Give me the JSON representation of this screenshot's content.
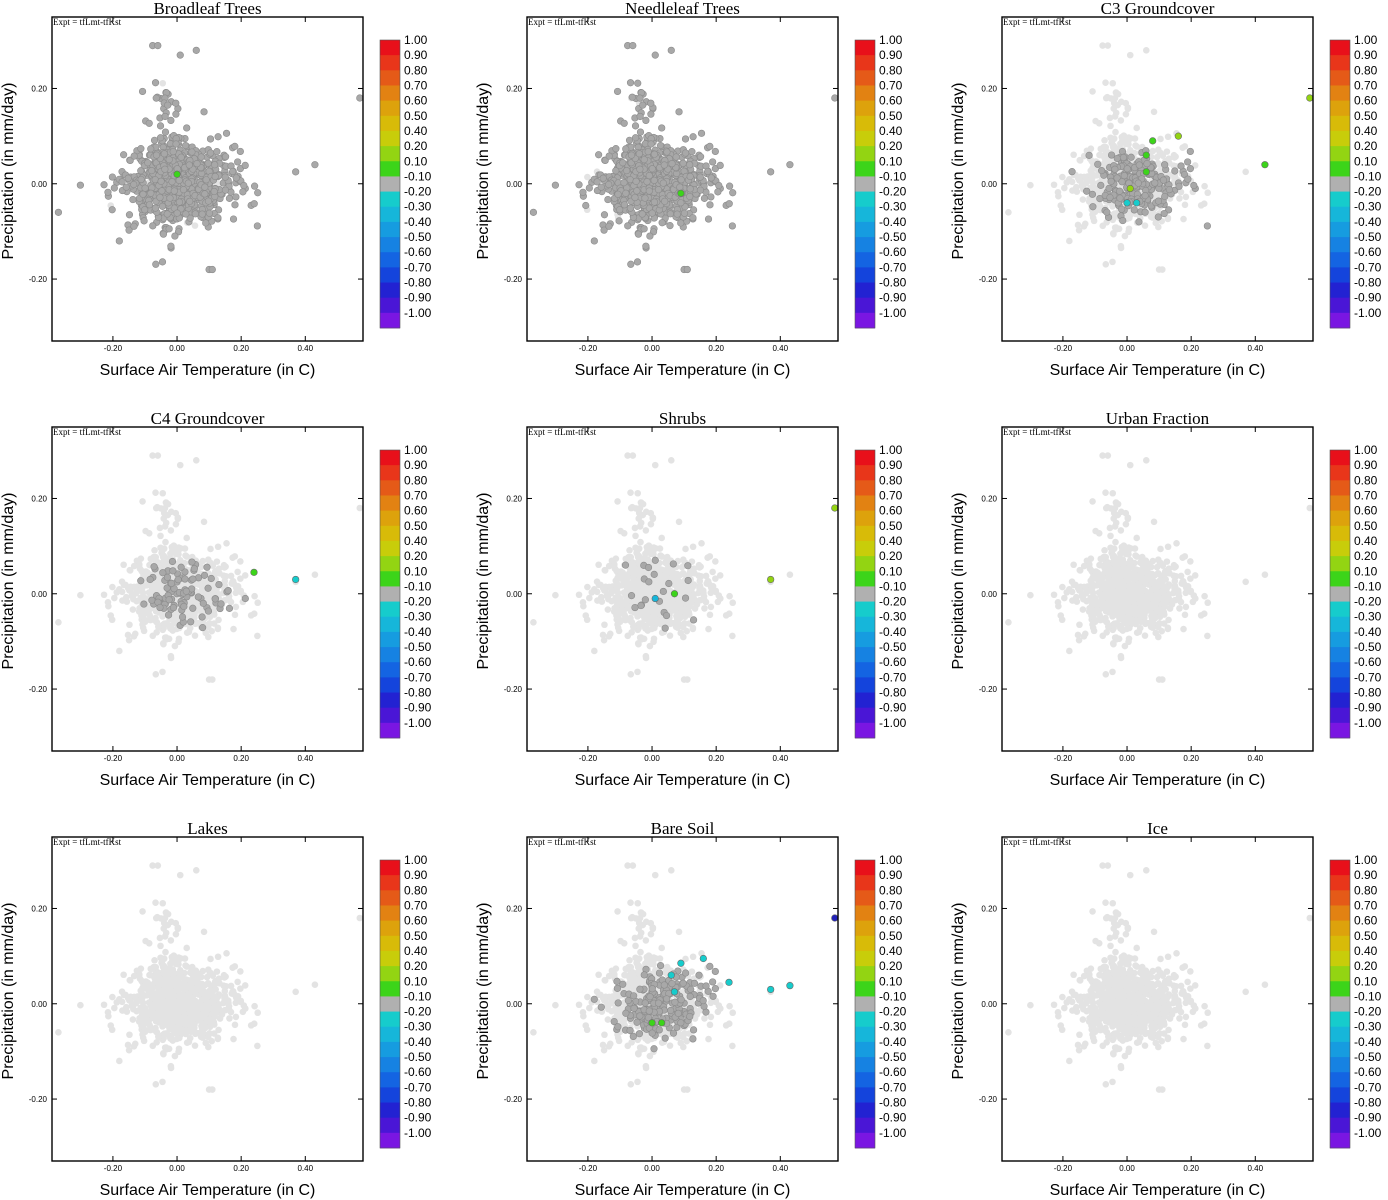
{
  "chart_data": {
    "type": "scatter",
    "experiment_label": "Expt = tfLmt-tfKst",
    "xlabel": "Surface Air Temperature (in C)",
    "ylabel": "Precipitation (in mm/day)",
    "xlim": [
      -0.39,
      0.58
    ],
    "ylim": [
      -0.33,
      0.35
    ],
    "xticks": [
      -0.2,
      0.0,
      0.2,
      0.4
    ],
    "xtick_labels": [
      "-0.20",
      "0.00",
      "0.20",
      "0.40"
    ],
    "yticks": [
      -0.2,
      0.0,
      0.2
    ],
    "ytick_labels": [
      "-0.20",
      "0.00",
      "0.20"
    ],
    "colorbar": {
      "labels": [
        "1.00",
        "0.90",
        "0.80",
        "0.70",
        "0.60",
        "0.50",
        "0.40",
        "0.20",
        "0.10",
        "-0.10",
        "-0.20",
        "-0.30",
        "-0.40",
        "-0.50",
        "-0.60",
        "-0.70",
        "-0.80",
        "-0.90",
        "-1.00"
      ],
      "colors": [
        "#e8101a",
        "#e8361a",
        "#e55a18",
        "#e28212",
        "#dda20c",
        "#d8bb08",
        "#c8cd0a",
        "#93d412",
        "#3cd41a",
        "#b0b0b0",
        "#16cccc",
        "#16b6da",
        "#169ce0",
        "#1682e2",
        "#1464e2",
        "#1444dc",
        "#2222d2",
        "#4a16d6",
        "#7a16e2"
      ]
    },
    "colors": {
      "background_point": "#e3e3e3",
      "neutral_point": "#a8a8a8",
      "positive": "#3cd41a",
      "positive_mid": "#93d412",
      "negative": "#16cccc",
      "negative_mid": "#16b6da",
      "strong_negative": "#2222b8"
    },
    "panels": [
      {
        "title": "Broadleaf Trees",
        "density": "heavy",
        "highlights": [
          {
            "x": 0.0,
            "y": 0.02,
            "color": "positive"
          }
        ]
      },
      {
        "title": "Needleleaf Trees",
        "density": "heavy",
        "highlights": [
          {
            "x": 0.09,
            "y": -0.02,
            "color": "positive"
          }
        ]
      },
      {
        "title": "C3 Groundcover",
        "density": "medium",
        "highlights": [
          {
            "x": 0.08,
            "y": 0.09,
            "color": "positive"
          },
          {
            "x": 0.16,
            "y": 0.1,
            "color": "positive_mid"
          },
          {
            "x": 0.06,
            "y": 0.06,
            "color": "positive"
          },
          {
            "x": 0.06,
            "y": 0.025,
            "color": "positive"
          },
          {
            "x": 0.43,
            "y": 0.04,
            "color": "positive"
          },
          {
            "x": 0.01,
            "y": -0.01,
            "color": "positive_mid"
          },
          {
            "x": 0.0,
            "y": -0.04,
            "color": "negative"
          },
          {
            "x": 0.03,
            "y": -0.04,
            "color": "negative"
          },
          {
            "x": 0.57,
            "y": 0.18,
            "color": "positive_mid"
          }
        ]
      },
      {
        "title": "C4 Groundcover",
        "density": "light",
        "highlights": [
          {
            "x": 0.24,
            "y": 0.045,
            "color": "positive"
          },
          {
            "x": 0.37,
            "y": 0.03,
            "color": "negative"
          }
        ]
      },
      {
        "title": "Shrubs",
        "density": "sparse",
        "highlights": [
          {
            "x": 0.01,
            "y": -0.01,
            "color": "negative_mid"
          },
          {
            "x": 0.07,
            "y": 0.0,
            "color": "positive"
          },
          {
            "x": 0.37,
            "y": 0.03,
            "color": "positive_mid"
          },
          {
            "x": 0.57,
            "y": 0.18,
            "color": "positive_mid"
          }
        ]
      },
      {
        "title": "Urban Fraction",
        "density": "none",
        "highlights": []
      },
      {
        "title": "Lakes",
        "density": "none",
        "highlights": []
      },
      {
        "title": "Bare Soil",
        "density": "medium",
        "highlights": [
          {
            "x": 0.09,
            "y": 0.085,
            "color": "negative"
          },
          {
            "x": 0.16,
            "y": 0.095,
            "color": "negative"
          },
          {
            "x": 0.06,
            "y": 0.06,
            "color": "negative"
          },
          {
            "x": 0.24,
            "y": 0.045,
            "color": "negative"
          },
          {
            "x": 0.37,
            "y": 0.03,
            "color": "negative"
          },
          {
            "x": 0.43,
            "y": 0.038,
            "color": "negative"
          },
          {
            "x": 0.07,
            "y": 0.025,
            "color": "negative"
          },
          {
            "x": 0.0,
            "y": -0.04,
            "color": "positive"
          },
          {
            "x": 0.03,
            "y": -0.04,
            "color": "positive"
          },
          {
            "x": 0.57,
            "y": 0.18,
            "color": "strong_negative"
          }
        ]
      },
      {
        "title": "Ice",
        "density": "none",
        "highlights": []
      }
    ]
  }
}
